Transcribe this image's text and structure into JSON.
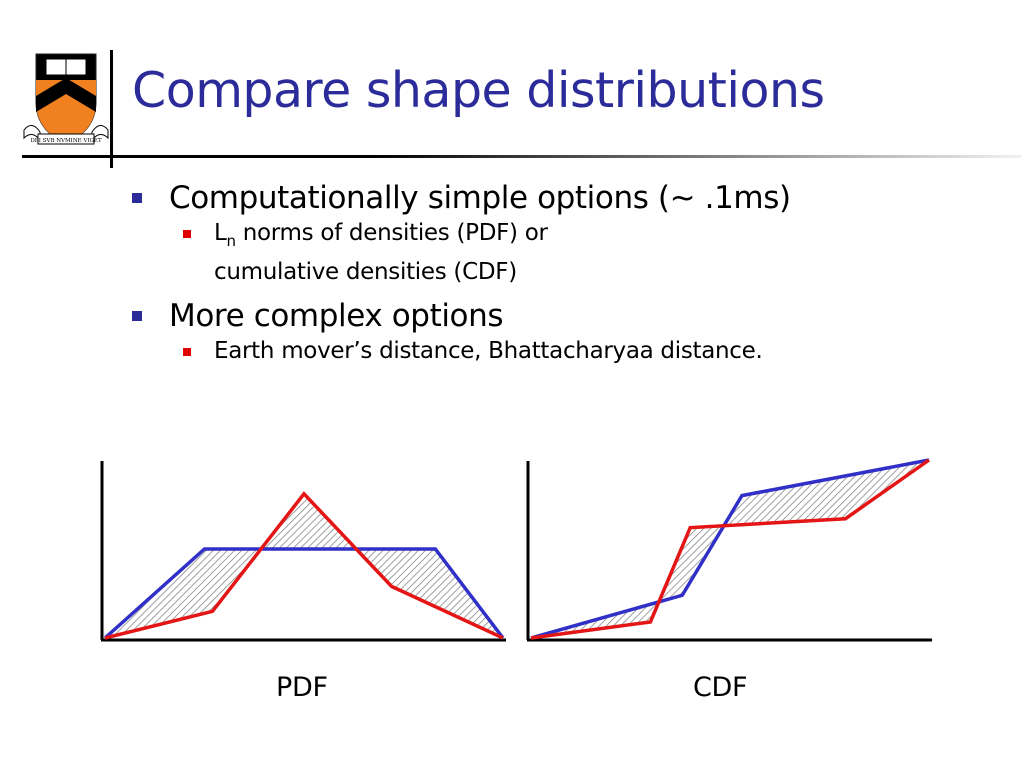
{
  "slide": {
    "title": "Compare shape distributions",
    "logo_motto": "DEI SVB NVMINE VIGET",
    "colors": {
      "title": "#2b2b9a",
      "bullet_level1": "#2b2b9a",
      "bullet_level2": "#e00000",
      "series_blue": "#3030c8",
      "series_red": "#e41515"
    }
  },
  "bullets": [
    {
      "text": "Computationally simple options (~ .1ms)",
      "sub": [
        {
          "prefix": "L",
          "subscript": "n",
          "line1": " norms of densities (PDF) or",
          "line2": "cumulative densities  (CDF)"
        }
      ]
    },
    {
      "text": "More complex options",
      "sub": [
        {
          "text": "Earth mover’s distance, Bhattacharyaa distance."
        }
      ]
    }
  ],
  "chart_data": [
    {
      "type": "line",
      "label": "PDF",
      "fill_between": "hatched",
      "series": [
        {
          "color": "#3030c8",
          "points": [
            [
              0,
              0
            ],
            [
              0.25,
              0.5
            ],
            [
              0.83,
              0.5
            ],
            [
              1,
              0
            ]
          ]
        },
        {
          "color": "#e41515",
          "points": [
            [
              0,
              0
            ],
            [
              0.27,
              0.15
            ],
            [
              0.5,
              0.81
            ],
            [
              0.72,
              0.29
            ],
            [
              1,
              0
            ]
          ]
        }
      ]
    },
    {
      "type": "line",
      "label": "CDF",
      "fill_between": "hatched",
      "series": [
        {
          "color": "#3030c8",
          "points": [
            [
              0,
              0
            ],
            [
              0.38,
              0.24
            ],
            [
              0.53,
              0.8
            ],
            [
              1,
              1
            ]
          ]
        },
        {
          "color": "#e41515",
          "points": [
            [
              0,
              0
            ],
            [
              0.3,
              0.09
            ],
            [
              0.4,
              0.62
            ],
            [
              0.79,
              0.67
            ],
            [
              1,
              1
            ]
          ]
        }
      ]
    }
  ]
}
